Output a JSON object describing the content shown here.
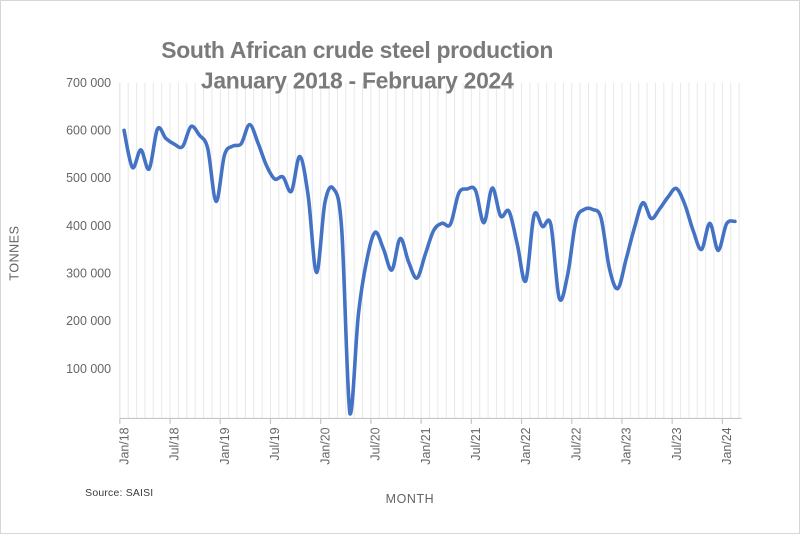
{
  "page": {
    "background": "#ffffff",
    "border_color": "#d6d6d6"
  },
  "chart_data": {
    "type": "line",
    "title_line1": "South African crude steel production",
    "title_line2": "January 2018 - February 2024",
    "ylabel": "TONNES",
    "xlabel": "MONTH",
    "source_note": "Source: SAISI",
    "line_color": "#4472C4",
    "grid": "vertical-monthly-gridlines-only",
    "legend": "none",
    "ylim": [
      0,
      700000
    ],
    "y_ticks": [
      {
        "label": "700 000",
        "value": 700000
      },
      {
        "label": "600 000",
        "value": 600000
      },
      {
        "label": "500 000",
        "value": 500000
      },
      {
        "label": "400 000",
        "value": 400000
      },
      {
        "label": "300 000",
        "value": 300000
      },
      {
        "label": "200 000",
        "value": 200000
      },
      {
        "label": "100 000",
        "value": 100000
      }
    ],
    "x_tick_labels": [
      "Jan/18",
      "Jul/18",
      "Jan/19",
      "Jul/19",
      "Jan/20",
      "Jul/20",
      "Jan/21",
      "Jul/21",
      "Jan/22",
      "Jul/22",
      "Jan/23",
      "Jul/23",
      "Jan/24"
    ],
    "x_tick_month_indices": [
      0,
      6,
      12,
      18,
      24,
      30,
      36,
      42,
      48,
      54,
      60,
      66,
      72
    ],
    "months": [
      "Jan/18",
      "Feb/18",
      "Mar/18",
      "Apr/18",
      "May/18",
      "Jun/18",
      "Jul/18",
      "Aug/18",
      "Sep/18",
      "Oct/18",
      "Nov/18",
      "Dec/18",
      "Jan/19",
      "Feb/19",
      "Mar/19",
      "Apr/19",
      "May/19",
      "Jun/19",
      "Jul/19",
      "Aug/19",
      "Sep/19",
      "Oct/19",
      "Nov/19",
      "Dec/19",
      "Jan/20",
      "Feb/20",
      "Mar/20",
      "Apr/20",
      "May/20",
      "Jun/20",
      "Jul/20",
      "Aug/20",
      "Sep/20",
      "Oct/20",
      "Nov/20",
      "Dec/20",
      "Jan/21",
      "Feb/21",
      "Mar/21",
      "Apr/21",
      "May/21",
      "Jun/21",
      "Jul/21",
      "Aug/21",
      "Sep/21",
      "Oct/21",
      "Nov/21",
      "Dec/21",
      "Jan/22",
      "Feb/22",
      "Mar/22",
      "Apr/22",
      "May/22",
      "Jun/22",
      "Jul/22",
      "Aug/22",
      "Sep/22",
      "Oct/22",
      "Nov/22",
      "Dec/22",
      "Jan/23",
      "Feb/23",
      "Mar/23",
      "Apr/23",
      "May/23",
      "Jun/23",
      "Jul/23",
      "Aug/23",
      "Sep/23",
      "Oct/23",
      "Nov/23",
      "Dec/23",
      "Jan/24",
      "Feb/24"
    ],
    "values": [
      600000,
      522000,
      559000,
      519000,
      603000,
      583000,
      571000,
      566000,
      608000,
      590000,
      562000,
      451000,
      548000,
      567000,
      572000,
      612000,
      574000,
      527000,
      498000,
      502000,
      472000,
      545000,
      463000,
      302000,
      448000,
      478000,
      395000,
      5000,
      213000,
      327000,
      386000,
      351000,
      307000,
      373000,
      324000,
      290000,
      340000,
      390000,
      405000,
      403000,
      468000,
      477000,
      474000,
      406000,
      479000,
      420000,
      430000,
      360000,
      284000,
      422000,
      398000,
      402000,
      248000,
      296000,
      410000,
      434000,
      434000,
      416000,
      310000,
      268000,
      330000,
      396000,
      448000,
      415000,
      435000,
      460000,
      478000,
      445000,
      390000,
      350000,
      405000,
      348000,
      404000,
      409000
    ]
  }
}
